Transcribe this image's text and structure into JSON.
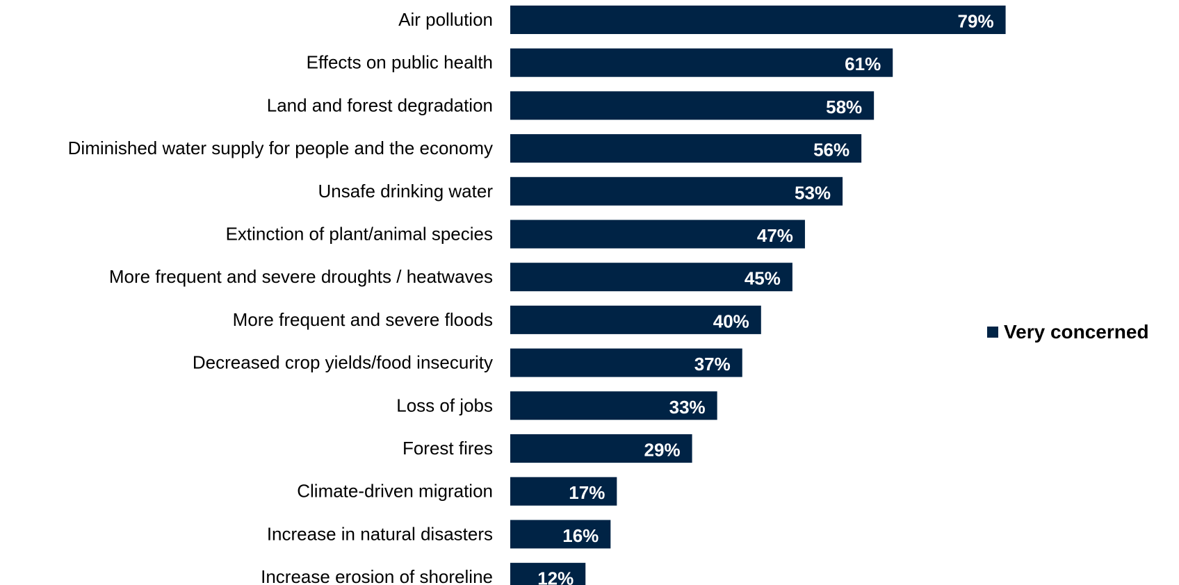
{
  "chart_data": {
    "type": "bar",
    "orientation": "horizontal",
    "categories": [
      "Air pollution",
      "Effects on public health",
      "Land and forest degradation",
      "Diminished water supply for people and the economy",
      "Unsafe drinking water",
      "Extinction of plant/animal species",
      "More frequent and severe droughts / heatwaves",
      "More frequent and severe floods",
      "Decreased crop yields/food insecurity",
      "Loss of jobs",
      "Forest fires",
      "Climate-driven migration",
      "Increase in natural disasters",
      "Increase erosion of shoreline"
    ],
    "series": [
      {
        "name": "Very concerned",
        "values": [
          79,
          61,
          58,
          56,
          53,
          47,
          45,
          40,
          37,
          33,
          29,
          17,
          16,
          12
        ],
        "labels": [
          "79%",
          "61%",
          "58%",
          "56%",
          "53%",
          "47%",
          "45%",
          "40%",
          "37%",
          "33%",
          "29%",
          "17%",
          "16%",
          "12%"
        ]
      }
    ],
    "xlim": [
      0,
      100
    ],
    "grid": false,
    "legend_position": "right",
    "bar_color": "#002345"
  }
}
